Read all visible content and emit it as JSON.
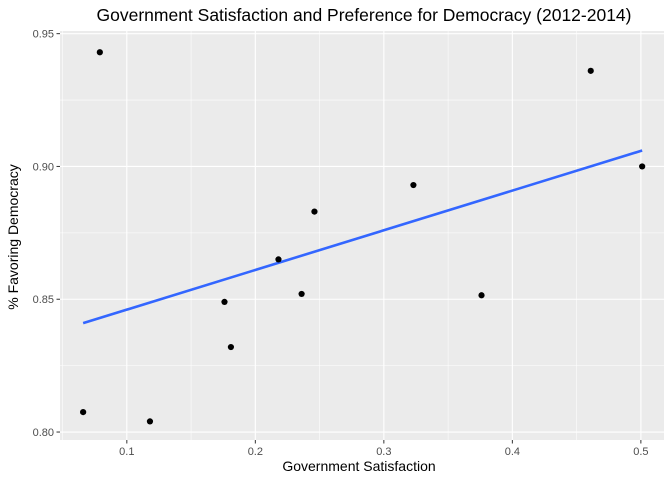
{
  "chart_data": {
    "type": "scatter",
    "title": "Government Satisfaction and Preference for Democracy (2012-2014)",
    "xlabel": "Government Satisfaction",
    "ylabel": "% Favoring Democracy",
    "xlim": [
      0.048,
      0.518
    ],
    "ylim": [
      0.797,
      0.951
    ],
    "x_ticks": [
      0.1,
      0.2,
      0.3,
      0.4,
      0.5
    ],
    "x_tick_labels": [
      "0.1",
      "0.2",
      "0.3",
      "0.4",
      "0.5"
    ],
    "y_ticks": [
      0.8,
      0.85,
      0.9,
      0.95
    ],
    "y_tick_labels": [
      "0.80",
      "0.85",
      "0.90",
      "0.95"
    ],
    "grid": true,
    "points": [
      {
        "x": 0.066,
        "y": 0.8075
      },
      {
        "x": 0.079,
        "y": 0.943
      },
      {
        "x": 0.118,
        "y": 0.804
      },
      {
        "x": 0.176,
        "y": 0.849
      },
      {
        "x": 0.181,
        "y": 0.832
      },
      {
        "x": 0.218,
        "y": 0.865
      },
      {
        "x": 0.236,
        "y": 0.852
      },
      {
        "x": 0.246,
        "y": 0.883
      },
      {
        "x": 0.323,
        "y": 0.893
      },
      {
        "x": 0.376,
        "y": 0.8515
      },
      {
        "x": 0.461,
        "y": 0.936
      },
      {
        "x": 0.501,
        "y": 0.9
      }
    ],
    "trend_line": {
      "x": [
        0.066,
        0.501
      ],
      "y": [
        0.841,
        0.906
      ]
    },
    "colors": {
      "panel": "#ebebeb",
      "grid_major": "#ffffff",
      "point": "#000000",
      "trend": "#3366ff",
      "tick": "#333333"
    }
  }
}
